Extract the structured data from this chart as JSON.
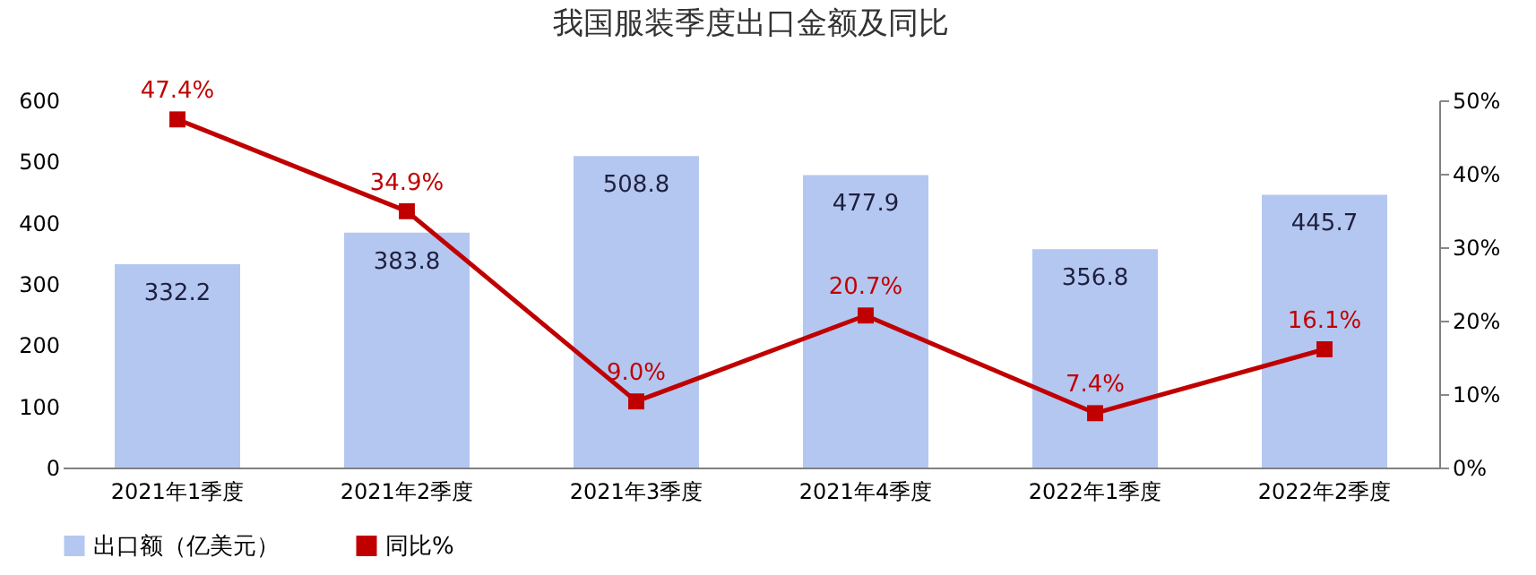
{
  "chart_data": {
    "type": "bar",
    "title": "我国服装季度出口金额及同比",
    "categories": [
      "2021年1季度",
      "2021年2季度",
      "2021年3季度",
      "2021年4季度",
      "2022年1季度",
      "2022年2季度"
    ],
    "series": [
      {
        "name": "出口额（亿美元）",
        "color": "#b4c7f0",
        "values": [
          332.2,
          383.8,
          508.8,
          477.9,
          356.8,
          445.7
        ]
      },
      {
        "name": "同比%",
        "type": "line",
        "axis": "y2",
        "color": "#c00000",
        "values": [
          47.4,
          34.9,
          9.0,
          20.7,
          7.4,
          16.1
        ],
        "value_labels": [
          "47.4%",
          "34.9%",
          "9.0%",
          "20.7%",
          "7.4%",
          "16.1%"
        ]
      }
    ],
    "data_labels": true,
    "ylim": [
      0,
      600
    ],
    "yticks": [
      0,
      100,
      200,
      300,
      400,
      500,
      600
    ],
    "y2lim": [
      0,
      50
    ],
    "y2ticks": [
      {
        "value": 0,
        "label": "0%"
      },
      {
        "value": 10,
        "label": "10%"
      },
      {
        "value": 20,
        "label": "20%"
      },
      {
        "value": 30,
        "label": "30%"
      },
      {
        "value": 40,
        "label": "40%"
      },
      {
        "value": 50,
        "label": "50%"
      }
    ],
    "grid": false,
    "legend": "bottom",
    "marker": "square",
    "line_style": "solid"
  }
}
